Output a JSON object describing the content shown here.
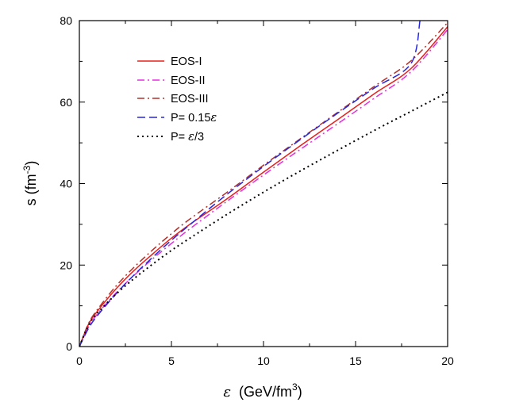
{
  "chart_data": {
    "type": "line",
    "title": "",
    "xlabel": {
      "symbol": "ε",
      "units": "(GeV/fm",
      "units_sup": "3",
      "units_end": ")"
    },
    "ylabel": {
      "text": "s (fm",
      "sup": "-3",
      "end": ")"
    },
    "xlim": [
      0,
      20
    ],
    "ylim": [
      0,
      80
    ],
    "xticks": [
      0,
      5,
      10,
      15,
      20
    ],
    "yticks": [
      0,
      20,
      40,
      60,
      80
    ],
    "grid": false,
    "legend_position": "top-left",
    "series": [
      {
        "legend": {
          "text": "EOS-I"
        },
        "color": "#e8201c",
        "dash": "solid",
        "x": [
          0,
          0.5,
          1,
          2,
          3,
          4,
          5,
          6,
          8,
          10,
          12,
          14,
          16,
          18,
          20
        ],
        "y": [
          0,
          5.5,
          8.8,
          14.2,
          18.8,
          22.8,
          26.6,
          30.0,
          36.2,
          42.8,
          49.3,
          55.6,
          62.0,
          68.2,
          78.5
        ]
      },
      {
        "legend": {
          "text": "EOS-II"
        },
        "color": "#e82ce0",
        "dash": "dashdot",
        "x": [
          0,
          0.5,
          1,
          2,
          3,
          4,
          5,
          6,
          8,
          10,
          12,
          14,
          16,
          18,
          20
        ],
        "y": [
          0,
          4.8,
          8.1,
          13.2,
          17.6,
          21.6,
          25.3,
          28.9,
          35.6,
          42.1,
          48.4,
          54.6,
          60.9,
          67.4,
          77.8
        ]
      },
      {
        "legend": {
          "text": "EOS-III"
        },
        "color": "#b0302a",
        "dash": "dashdot",
        "x": [
          0,
          0.5,
          1,
          2,
          3,
          4,
          5,
          6,
          8,
          10,
          12,
          14,
          16,
          18,
          20
        ],
        "y": [
          0,
          5.7,
          9.2,
          14.9,
          19.6,
          23.8,
          27.7,
          31.3,
          37.8,
          44.5,
          51.0,
          57.4,
          63.8,
          70.1,
          79.5
        ]
      },
      {
        "legend": {
          "prefix": "P= 0.15",
          "symbol": "ε",
          "suffix": ""
        },
        "color": "#2626e0",
        "dash": "dashed",
        "x": [
          0,
          0.5,
          1,
          2,
          3,
          4,
          5,
          6,
          8,
          10,
          12,
          14,
          16,
          18,
          18.5
        ],
        "y": [
          0,
          4.5,
          7.7,
          13.0,
          17.7,
          22.0,
          26.1,
          29.9,
          37.3,
          44.2,
          50.8,
          57.2,
          63.4,
          69.4,
          80.0
        ]
      },
      {
        "legend": {
          "prefix": "P= ",
          "symbol": "ε",
          "suffix": "/3"
        },
        "color": "#000000",
        "dash": "dotted",
        "x": [
          0,
          0.5,
          1,
          2,
          3,
          4,
          5,
          6,
          8,
          10,
          12,
          14,
          16,
          18,
          20
        ],
        "y": [
          0,
          5.2,
          8.3,
          12.9,
          16.8,
          20.3,
          23.6,
          26.6,
          32.4,
          37.9,
          43.1,
          48.1,
          53.0,
          57.7,
          62.4
        ]
      }
    ]
  }
}
